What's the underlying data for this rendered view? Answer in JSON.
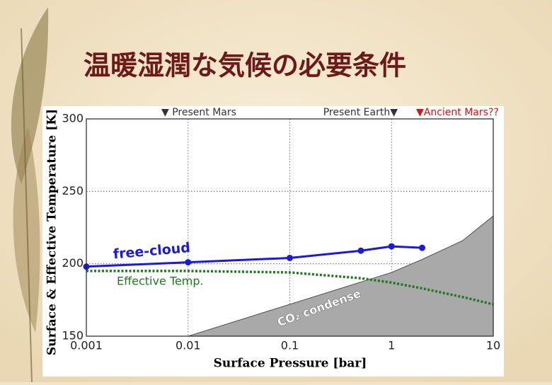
{
  "chart_data": {
    "type": "line",
    "title": "温暖湿潤な気候の必要条件",
    "x_label": "Surface Pressure [bar]",
    "y_label": "Surface & Effective Temperature [K]",
    "xlim": [
      0.001,
      10
    ],
    "xticks": [
      0.001,
      0.01,
      0.1,
      1,
      10
    ],
    "xscale": "log",
    "ylim": [
      150,
      300
    ],
    "yticks": [
      150,
      200,
      250,
      300
    ],
    "grid": true,
    "annotations": [
      "▼ Present Mars",
      "Present Earth▼",
      "▼Ancient Mars??"
    ],
    "series": [
      {
        "name": "free-cloud",
        "color": "#1a1ad8",
        "style": "solid",
        "markers": true,
        "x": [
          0.001,
          0.01,
          0.1,
          0.5,
          1,
          2
        ],
        "values": [
          198,
          201,
          204,
          209,
          212,
          211
        ]
      },
      {
        "name": "Effective Temp.",
        "color": "#1f7a1f",
        "style": "dotted",
        "markers": false,
        "x": [
          0.001,
          0.01,
          0.1,
          0.5,
          1,
          2,
          5,
          10
        ],
        "values": [
          195,
          195,
          194,
          190,
          187,
          183,
          177,
          172
        ]
      },
      {
        "name": "CO₂ condense",
        "color": "#a9a9a9",
        "style": "area",
        "markers": false,
        "x": [
          0.01,
          0.1,
          1,
          2,
          5,
          10
        ],
        "values": [
          150,
          172,
          194,
          203,
          216,
          233
        ]
      }
    ]
  }
}
